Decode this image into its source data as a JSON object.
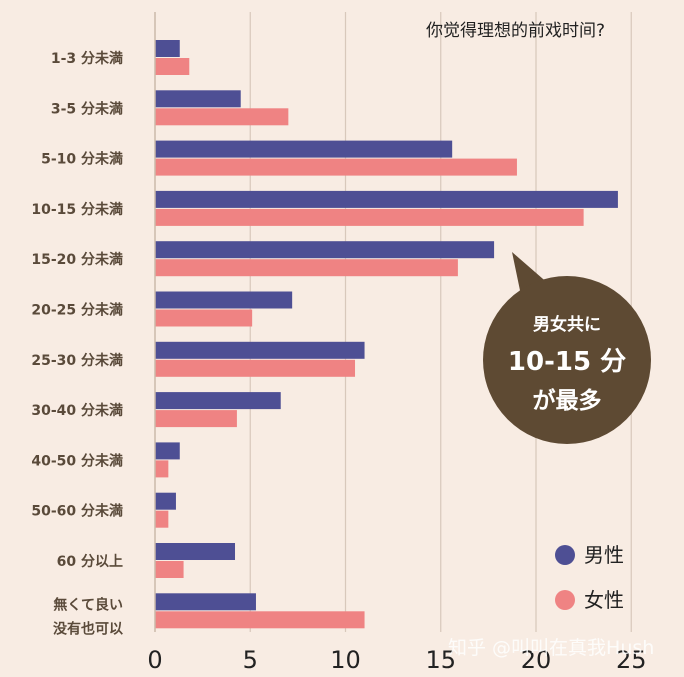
{
  "chart_data": {
    "type": "bar",
    "orientation": "horizontal",
    "title": "你觉得理想的前戏时间?",
    "categories": [
      "1-3 分未満",
      "3-5 分未満",
      "5-10 分未満",
      "10-15 分未満",
      "15-20 分未満",
      "20-25 分未満",
      "25-30 分未満",
      "30-40 分未満",
      "40-50 分未満",
      "50-60 分未満",
      "60 分以上",
      "無くて良い"
    ],
    "category_sublabel": "没有也可以",
    "series": [
      {
        "name": "男性",
        "color": "#4e4f94",
        "values": [
          1.3,
          4.5,
          15.6,
          24.3,
          17.8,
          7.2,
          11.0,
          6.6,
          1.3,
          1.1,
          4.2,
          5.3
        ]
      },
      {
        "name": "女性",
        "color": "#ef8383",
        "values": [
          1.8,
          7.0,
          19.0,
          22.5,
          15.9,
          5.1,
          10.5,
          4.3,
          0.7,
          0.7,
          1.5,
          11.0
        ]
      }
    ],
    "xlim": [
      0,
      25
    ],
    "xticks": [
      0,
      5,
      10,
      15,
      20,
      25
    ],
    "grid": true,
    "legend_position": "bottom-right",
    "annotation": {
      "line1": "男女共に",
      "line2": "10-15 分",
      "line3": "が最多",
      "color": "#5e4a33"
    }
  },
  "watermark": "知乎 @叫叫在真我Hush"
}
